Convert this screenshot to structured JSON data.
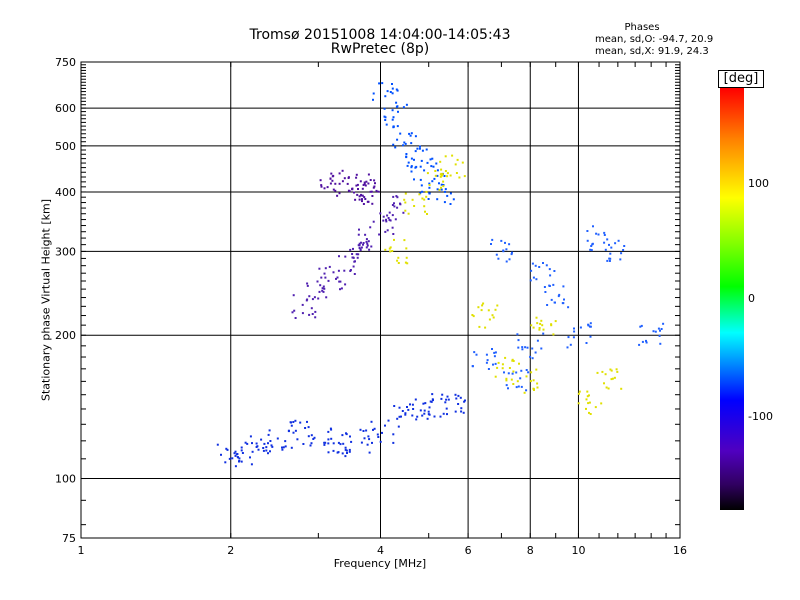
{
  "header": {
    "title_line1": "Tromsø 20151008 14:04:00-14:05:43",
    "title_line2": "RwPretec (8p)",
    "phases_title": "Phases",
    "phases_o": "mean, sd,O: -94.7, 20.9",
    "phases_x": "mean, sd,X: 91.9, 24.3"
  },
  "colorbar": {
    "unit": "[deg]",
    "ticks": [
      "100",
      "0",
      "-100"
    ],
    "colors": [
      "#000000",
      "#400080",
      "#0000ff",
      "#0080ff",
      "#00ffff",
      "#00ff00",
      "#80ff00",
      "#ffff00",
      "#ff8000",
      "#ff0000"
    ]
  },
  "chart_data": {
    "type": "scatter",
    "title": "Tromsø 20151008 14:04:00-14:05:43",
    "subtitle": "RwPretec (8p)",
    "xlabel": "Frequency [MHz]",
    "ylabel": "Stationary phase Virtual Height [km]",
    "x_scale": "log",
    "y_scale": "log",
    "xlim": [
      1,
      16
    ],
    "ylim": [
      75,
      750
    ],
    "x_ticks": [
      1,
      2,
      4,
      6,
      8,
      10,
      16
    ],
    "y_ticks": [
      75,
      100,
      200,
      300,
      400,
      500,
      600,
      750
    ],
    "x_tick_labels": [
      "1",
      "2",
      "4",
      "6",
      "8",
      "10",
      "16"
    ],
    "y_tick_labels": [
      "75",
      "100",
      "200",
      "300",
      "400",
      "500",
      "600",
      "750"
    ],
    "grid": true,
    "color_meaning": "phase [deg]",
    "series": [
      {
        "label": "dense blue band",
        "color": "#1030e0",
        "x": [
          2.0,
          2.1,
          2.3,
          2.5,
          2.8,
          3.0,
          3.3,
          3.6,
          4.0,
          4.4,
          4.8,
          5.2,
          5.6
        ],
        "y": [
          112,
          113,
          118,
          120,
          125,
          120,
          118,
          120,
          125,
          135,
          140,
          143,
          145
        ]
      },
      {
        "label": "purple rising trace",
        "color": "#5020b0",
        "x": [
          2.8,
          3.0,
          3.2,
          3.4,
          3.6,
          3.8,
          4.0,
          4.2
        ],
        "y": [
          230,
          250,
          265,
          280,
          300,
          320,
          345,
          370
        ]
      },
      {
        "label": "purple cluster 400km",
        "color": "#5010a0",
        "x": [
          3.2,
          3.4,
          3.6,
          3.7,
          3.8
        ],
        "y": [
          420,
          415,
          410,
          400,
          405
        ]
      },
      {
        "label": "blue column 4-5 MHz",
        "color": "#0050ff",
        "x": [
          4.1,
          4.3,
          4.5,
          4.7,
          4.9,
          5.1,
          5.3
        ],
        "y": [
          640,
          580,
          520,
          480,
          450,
          420,
          400
        ]
      },
      {
        "label": "yellow traces",
        "color": "#e0e000",
        "x": [
          4.3,
          4.7,
          5.2,
          5.6,
          6.5,
          7.2,
          7.8,
          8.5,
          10.5,
          11.5
        ],
        "y": [
          300,
          380,
          420,
          450,
          220,
          170,
          160,
          210,
          145,
          160
        ]
      },
      {
        "label": "scattered high freq",
        "color": "#2060ff",
        "x": [
          6.5,
          7.0,
          7.5,
          8.0,
          8.5,
          9.0,
          10.0,
          11.0,
          12.0,
          14.0
        ],
        "y": [
          180,
          300,
          160,
          190,
          270,
          240,
          200,
          320,
          300,
          200
        ]
      }
    ]
  }
}
